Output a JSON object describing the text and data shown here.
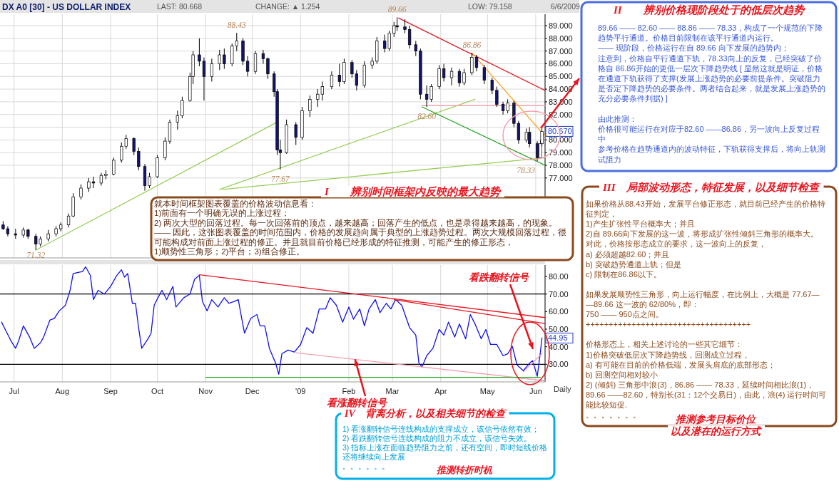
{
  "chart_data": [
    {
      "type": "candlestick",
      "title": "DX A0 [30] - US DOLLAR INDEX",
      "x": [
        "2008-06-24",
        "2008-06-27",
        "2008-07-02",
        "2008-07-07",
        "2008-07-10",
        "2008-07-15",
        "2008-07-18",
        "2008-07-23",
        "2008-07-28",
        "2008-07-31",
        "2008-08-05",
        "2008-08-08",
        "2008-08-13",
        "2008-08-18",
        "2008-08-21",
        "2008-08-26",
        "2008-08-29",
        "2008-09-03",
        "2008-09-08",
        "2008-09-11",
        "2008-09-16",
        "2008-09-19",
        "2008-09-23",
        "2008-09-26",
        "2008-10-01",
        "2008-10-06",
        "2008-10-09",
        "2008-10-14",
        "2008-10-17",
        "2008-10-22",
        "2008-10-24",
        "2008-10-28",
        "2008-10-31",
        "2008-11-05",
        "2008-11-10",
        "2008-11-13",
        "2008-11-18",
        "2008-11-21",
        "2008-11-25",
        "2008-11-28",
        "2008-12-03",
        "2008-12-08",
        "2008-12-11",
        "2008-12-15",
        "2008-12-17",
        "2008-12-19",
        "2008-12-23",
        "2008-12-29",
        "2009-01-02",
        "2009-01-07",
        "2009-01-12",
        "2009-01-15",
        "2009-01-21",
        "2009-01-26",
        "2009-01-29",
        "2009-02-03",
        "2009-02-06",
        "2009-02-11",
        "2009-02-16",
        "2009-02-19",
        "2009-02-24",
        "2009-02-27",
        "2009-03-02",
        "2009-03-04",
        "2009-03-09",
        "2009-03-12",
        "2009-03-16",
        "2009-03-19",
        "2009-03-23",
        "2009-03-26",
        "2009-03-31",
        "2009-04-03",
        "2009-04-08",
        "2009-04-13",
        "2009-04-16",
        "2009-04-21",
        "2009-04-24",
        "2009-04-29",
        "2009-05-04",
        "2009-05-07",
        "2009-05-11",
        "2009-05-14",
        "2009-05-18",
        "2009-05-21",
        "2009-05-26",
        "2009-05-28",
        "2009-06-02",
        "2009-06-04",
        "2009-06-05"
      ],
      "ohlc": [
        [
          73.3,
          73.6,
          72.9,
          73.0
        ],
        [
          73.0,
          73.2,
          72.4,
          72.6
        ],
        [
          72.6,
          73.0,
          72.2,
          72.5
        ],
        [
          72.5,
          73.1,
          72.3,
          72.9
        ],
        [
          72.9,
          73.0,
          72.2,
          72.4
        ],
        [
          72.4,
          72.6,
          71.32,
          71.8
        ],
        [
          71.8,
          72.4,
          71.6,
          72.2
        ],
        [
          72.2,
          72.9,
          72.0,
          72.6
        ],
        [
          72.6,
          73.2,
          72.4,
          73.0
        ],
        [
          73.0,
          73.5,
          72.8,
          73.3
        ],
        [
          73.3,
          74.2,
          73.1,
          74.0
        ],
        [
          74.0,
          75.8,
          73.9,
          75.5
        ],
        [
          75.5,
          76.5,
          75.3,
          76.2
        ],
        [
          76.2,
          77.0,
          75.9,
          76.7
        ],
        [
          76.7,
          77.1,
          76.2,
          76.6
        ],
        [
          76.6,
          77.4,
          76.4,
          77.2
        ],
        [
          77.2,
          77.6,
          76.9,
          77.3
        ],
        [
          77.3,
          78.6,
          77.2,
          78.4
        ],
        [
          78.4,
          79.8,
          78.2,
          79.5
        ],
        [
          79.5,
          80.4,
          79.3,
          80.1
        ],
        [
          80.1,
          80.2,
          78.8,
          79.1
        ],
        [
          79.1,
          79.4,
          77.6,
          77.9
        ],
        [
          77.9,
          78.1,
          76.0,
          76.4
        ],
        [
          76.4,
          77.4,
          76.2,
          77.1
        ],
        [
          77.1,
          78.8,
          77.0,
          78.6
        ],
        [
          78.6,
          80.2,
          78.4,
          79.9
        ],
        [
          79.9,
          81.6,
          79.7,
          81.4
        ],
        [
          81.4,
          82.3,
          80.8,
          81.9
        ],
        [
          81.9,
          83.4,
          81.7,
          83.1
        ],
        [
          83.1,
          85.3,
          83.0,
          85.0
        ],
        [
          85.0,
          87.0,
          84.4,
          86.7
        ],
        [
          86.7,
          88.0,
          85.8,
          86.2
        ],
        [
          86.2,
          86.5,
          83.1,
          85.0
        ],
        [
          85.0,
          86.4,
          84.6,
          86.0
        ],
        [
          86.0,
          87.1,
          85.5,
          86.7
        ],
        [
          86.7,
          87.2,
          85.6,
          86.0
        ],
        [
          86.0,
          87.6,
          85.8,
          87.4
        ],
        [
          87.4,
          88.43,
          87.0,
          87.8
        ],
        [
          87.8,
          88.0,
          85.9,
          86.2
        ],
        [
          86.2,
          86.6,
          85.0,
          85.4
        ],
        [
          85.4,
          87.0,
          85.2,
          86.8
        ],
        [
          86.8,
          87.1,
          86.0,
          86.4
        ],
        [
          86.4,
          86.5,
          84.8,
          85.2
        ],
        [
          85.2,
          85.4,
          83.4,
          83.8
        ],
        [
          83.8,
          84.0,
          78.8,
          79.2
        ],
        [
          79.2,
          80.0,
          77.67,
          79.0
        ],
        [
          79.0,
          81.6,
          78.9,
          81.2
        ],
        [
          81.2,
          81.4,
          79.6,
          80.2
        ],
        [
          80.2,
          82.6,
          80.0,
          82.3
        ],
        [
          82.3,
          83.5,
          81.8,
          83.2
        ],
        [
          83.2,
          84.0,
          82.6,
          83.6
        ],
        [
          83.6,
          84.6,
          83.1,
          84.2
        ],
        [
          84.2,
          85.4,
          84.0,
          85.1
        ],
        [
          85.1,
          86.0,
          84.2,
          84.6
        ],
        [
          84.6,
          86.4,
          84.4,
          86.1
        ],
        [
          86.1,
          86.3,
          84.9,
          85.2
        ],
        [
          85.2,
          85.5,
          83.9,
          84.3
        ],
        [
          84.3,
          86.2,
          84.1,
          85.9
        ],
        [
          85.9,
          86.5,
          85.6,
          86.2
        ],
        [
          86.2,
          88.1,
          86.0,
          87.8
        ],
        [
          87.8,
          88.3,
          86.9,
          87.2
        ],
        [
          87.2,
          88.6,
          87.0,
          88.4
        ],
        [
          88.4,
          89.3,
          88.1,
          89.0
        ],
        [
          89.0,
          89.66,
          88.6,
          88.9
        ],
        [
          88.9,
          89.5,
          88.4,
          88.7
        ],
        [
          88.7,
          89.0,
          87.2,
          87.5
        ],
        [
          87.5,
          87.8,
          86.6,
          87.0
        ],
        [
          87.0,
          87.2,
          83.2,
          83.6
        ],
        [
          83.6,
          84.3,
          82.6,
          83.2
        ],
        [
          83.2,
          84.4,
          83.0,
          84.2
        ],
        [
          84.2,
          85.9,
          84.0,
          85.6
        ],
        [
          85.6,
          86.0,
          84.6,
          84.9
        ],
        [
          84.9,
          85.7,
          84.3,
          85.4
        ],
        [
          85.4,
          85.6,
          84.2,
          84.5
        ],
        [
          84.5,
          85.6,
          84.3,
          85.3
        ],
        [
          85.3,
          86.86,
          85.1,
          86.5
        ],
        [
          86.5,
          86.7,
          85.4,
          85.7
        ],
        [
          85.7,
          85.9,
          84.4,
          84.7
        ],
        [
          84.7,
          84.9,
          83.6,
          83.9
        ],
        [
          83.9,
          84.2,
          82.6,
          82.8
        ],
        [
          82.8,
          83.0,
          82.0,
          82.3
        ],
        [
          82.3,
          83.2,
          82.1,
          82.9
        ],
        [
          82.9,
          83.1,
          81.0,
          81.3
        ],
        [
          81.3,
          81.5,
          79.7,
          80.0
        ],
        [
          80.0,
          80.9,
          79.8,
          80.6
        ],
        [
          80.6,
          81.0,
          79.4,
          79.7
        ],
        [
          79.7,
          79.9,
          78.33,
          78.6
        ],
        [
          78.6,
          80.0,
          78.5,
          79.7
        ],
        [
          79.7,
          80.9,
          79.5,
          80.67
        ]
      ],
      "series": [
        {
          "type": "line",
          "color": "#9acd5a",
          "x": [
            "2008-07-15",
            "2008-12-17"
          ],
          "values": [
            71.32,
            81.4
          ]
        },
        {
          "type": "line",
          "color": "#9acd5a",
          "x": [
            "2008-11-12",
            "2009-06-07"
          ],
          "values": [
            76.1,
            78.6
          ]
        },
        {
          "type": "line",
          "color": "#9acd5a",
          "x": [
            "2008-11-10",
            "2009-04-23"
          ],
          "values": [
            76.1,
            83.2
          ]
        },
        {
          "type": "line",
          "color": "#f4a0b0",
          "x": [
            "2009-03-20",
            "2009-06-07"
          ],
          "values": [
            82.7,
            82.7
          ]
        },
        {
          "type": "line",
          "color": "#e8141e",
          "x": [
            "2009-03-05",
            "2009-06-07"
          ],
          "values": [
            89.6,
            83.9
          ]
        },
        {
          "type": "line",
          "color": "#1ea01e",
          "x": [
            "2009-03-20",
            "2009-06-07"
          ],
          "values": [
            82.6,
            78.0
          ]
        },
        {
          "type": "line",
          "color": "#ffa020",
          "x": [
            "2009-04-21",
            "2009-06-07"
          ],
          "values": [
            86.86,
            80.3
          ]
        }
      ],
      "xlim": [
        "2008-06-22",
        "2009-06-07"
      ],
      "xticks": [
        {
          "value": "2008-07-01",
          "label": null
        },
        {
          "value": "2008-08-01",
          "label": null
        },
        {
          "value": "2008-09-01",
          "label": null
        },
        {
          "value": "2008-10-01",
          "label": null
        },
        {
          "value": "2008-11-01",
          "label": null
        },
        {
          "value": "2008-12-01",
          "label": null
        },
        {
          "value": "2009-01-01",
          "label": null
        },
        {
          "value": "2009-02-01",
          "label": null
        },
        {
          "value": "2009-03-01",
          "label": null
        },
        {
          "value": "2009-04-01",
          "label": null
        },
        {
          "value": "2009-05-01",
          "label": null
        },
        {
          "value": "2009-06-01",
          "label": null
        }
      ],
      "ylim": [
        70.7,
        89.9
      ],
      "yticks": [
        {
          "value": 77,
          "label": "77.000"
        },
        {
          "value": 78,
          "label": "78.000"
        },
        {
          "value": 79,
          "label": "79.000"
        },
        {
          "value": 80,
          "label": "80.000"
        },
        {
          "value": 81,
          "label": null
        },
        {
          "value": 82,
          "label": "82.000"
        },
        {
          "value": 83,
          "label": "83.000"
        },
        {
          "value": 84,
          "label": "84.000"
        },
        {
          "value": 85,
          "label": "85.000"
        },
        {
          "value": 86,
          "label": "86.000"
        },
        {
          "value": 87,
          "label": "87.000"
        },
        {
          "value": 88,
          "label": "88.000"
        },
        {
          "value": 89,
          "label": "89.000"
        }
      ],
      "tick_labels": "y",
      "grid": true,
      "annotations": [
        "LAST: 80.668",
        "CHANGE: ▲ 1.254",
        "LOW: 79.158",
        "6/6/2009",
        {
          "text": "88.43",
          "x": "2008-11-21",
          "y": 88.43
        },
        {
          "text": "89.66",
          "x": "2009-03-04",
          "y": 89.66
        },
        {
          "text": "86.86",
          "x": "2009-04-21",
          "y": 86.86
        },
        {
          "text": "82.60",
          "x": "2009-03-23",
          "y": 82.6
        },
        {
          "text": "77.67",
          "x": "2008-12-19",
          "y": 77.67
        },
        {
          "text": "78.33",
          "x": "2009-06-02",
          "y": 78.33
        },
        {
          "text": "71.32",
          "x": "2008-07-15",
          "y": 71.32
        },
        {
          "text": "80.670",
          "x": "2009-06-05",
          "y": 80.67
        }
      ]
    },
    {
      "type": "line",
      "series": [
        {
          "color": "#1010ee",
          "x": [
            "2008-06-23",
            "2008-06-26",
            "2008-06-29",
            "2008-07-02",
            "2008-07-04",
            "2008-07-07",
            "2008-07-11",
            "2008-07-14",
            "2008-07-18",
            "2008-07-20",
            "2008-07-24",
            "2008-07-27",
            "2008-07-30",
            "2008-08-03",
            "2008-08-06",
            "2008-08-08",
            "2008-08-14",
            "2008-08-16",
            "2008-08-19",
            "2008-08-21",
            "2008-08-24",
            "2008-08-28",
            "2008-09-01",
            "2008-09-05",
            "2008-09-08",
            "2008-09-10",
            "2008-09-12",
            "2008-09-15",
            "2008-09-17",
            "2008-09-19",
            "2008-09-21",
            "2008-09-25",
            "2008-09-27",
            "2008-09-29",
            "2008-10-02",
            "2008-10-04",
            "2008-10-07",
            "2008-10-11",
            "2008-10-13",
            "2008-10-18",
            "2008-10-22",
            "2008-10-25",
            "2008-10-28",
            "2008-10-30",
            "2008-11-02",
            "2008-11-05",
            "2008-11-09",
            "2008-11-13",
            "2008-11-16",
            "2008-11-19",
            "2008-11-22",
            "2008-11-24",
            "2008-11-26",
            "2008-11-30",
            "2008-12-04",
            "2008-12-06",
            "2008-12-09",
            "2008-12-12",
            "2008-12-16",
            "2008-12-18",
            "2008-12-20",
            "2008-12-24",
            "2008-12-28",
            "2009-01-01",
            "2009-01-05",
            "2009-01-09",
            "2009-01-13",
            "2009-01-17",
            "2009-01-20",
            "2009-01-24",
            "2009-01-28",
            "2009-02-01",
            "2009-02-04",
            "2009-02-08",
            "2009-02-11",
            "2009-02-14",
            "2009-02-18",
            "2009-02-21",
            "2009-02-25",
            "2009-02-28",
            "2009-03-03",
            "2009-03-07",
            "2009-03-12",
            "2009-03-16",
            "2009-03-18",
            "2009-03-20",
            "2009-03-23",
            "2009-03-27",
            "2009-03-31",
            "2009-04-03",
            "2009-04-06",
            "2009-04-10",
            "2009-04-13",
            "2009-04-17",
            "2009-04-20",
            "2009-04-23",
            "2009-04-27",
            "2009-04-30",
            "2009-05-03",
            "2009-05-07",
            "2009-05-11",
            "2009-05-14",
            "2009-05-17",
            "2009-05-20",
            "2009-05-24",
            "2009-05-28",
            "2009-05-30",
            "2009-06-02",
            "2009-06-04",
            "2009-06-05"
          ],
          "values": [
            54.0,
            48.7,
            43.4,
            39.1,
            43.4,
            51.9,
            45.5,
            39.1,
            42.3,
            45.5,
            55.1,
            56.2,
            60.4,
            63.6,
            72.1,
            81.7,
            82.8,
            85.5,
            80.6,
            66.8,
            72.1,
            70.0,
            74.3,
            80.6,
            83.8,
            79.6,
            81.7,
            64.7,
            64.7,
            50.9,
            39.1,
            44.5,
            47.7,
            63.6,
            68.9,
            72.1,
            66.8,
            74.3,
            62.6,
            67.9,
            70.0,
            78.5,
            80.6,
            65.7,
            60.4,
            66.8,
            62.6,
            67.9,
            64.7,
            65.7,
            66.8,
            57.2,
            47.7,
            56.2,
            58.3,
            51.9,
            51.9,
            39.1,
            30.6,
            24.3,
            36.0,
            38.1,
            37.0,
            41.3,
            50.9,
            47.7,
            61.5,
            61.5,
            67.9,
            63.6,
            54.0,
            62.6,
            55.7,
            61.5,
            51.9,
            61.5,
            66.8,
            59.4,
            64.7,
            61.5,
            66.8,
            63.6,
            50.9,
            46.6,
            30.6,
            28.5,
            34.9,
            39.1,
            49.8,
            46.6,
            54.0,
            45.5,
            53.0,
            44.5,
            58.3,
            53.0,
            44.5,
            49.8,
            41.3,
            41.3,
            34.9,
            36.0,
            40.2,
            29.6,
            26.4,
            30.6,
            32.1,
            23.2,
            37.0,
            45.0
          ]
        },
        {
          "type": "line",
          "color": "#e8141e",
          "x": [
            "2008-10-28",
            "2009-06-07"
          ],
          "values": [
            81.0,
            56.6
          ]
        },
        {
          "type": "line",
          "color": "#e8141e",
          "x": [
            "2009-03-02",
            "2009-06-07"
          ],
          "values": [
            66.8,
            53.2
          ]
        },
        {
          "type": "line",
          "color": "#f4a0b0",
          "x": [
            "2008-12-29",
            "2009-06-07"
          ],
          "values": [
            36.6,
            20.6
          ]
        },
        {
          "type": "line",
          "color": "#f4a0b0",
          "x": [
            "2009-05-24",
            "2009-06-05"
          ],
          "values": [
            25.7,
            36.0
          ]
        },
        {
          "type": "line",
          "color": "#22aa22",
          "x": [
            "2008-11-01",
            "2009-06-04"
          ],
          "values": [
            22.6,
            22.6
          ]
        }
      ],
      "ref_lines": [
        {
          "axis": "y",
          "value": 70,
          "color": "#000000"
        },
        {
          "axis": "y",
          "value": 30,
          "color": "#000000"
        }
      ],
      "xlim": [
        "2008-06-22",
        "2009-06-07"
      ],
      "xticks": [
        {
          "value": "2008-07-01",
          "label": "Jul"
        },
        {
          "value": "2008-08-01",
          "label": "Aug"
        },
        {
          "value": "2008-09-01",
          "label": "Sep"
        },
        {
          "value": "2008-10-01",
          "label": "Oct"
        },
        {
          "value": "2008-11-01",
          "label": "Nov"
        },
        {
          "value": "2008-12-01",
          "label": "Dec"
        },
        {
          "value": "2009-01-01",
          "label": "'09"
        },
        {
          "value": "2009-02-01",
          "label": "Feb"
        },
        {
          "value": "2009-03-01",
          "label": "Mar"
        },
        {
          "value": "2009-04-01",
          "label": "Apr"
        },
        {
          "value": "2009-05-01",
          "label": "May"
        },
        {
          "value": "2009-06-01",
          "label": "Jun"
        }
      ],
      "ylim": [
        20,
        86.5
      ],
      "yticks": [
        {
          "value": 30,
          "label": "30.00"
        },
        {
          "value": 40,
          "label": "40.00"
        },
        {
          "value": 50,
          "label": "50.00"
        },
        {
          "value": 60,
          "label": "60.00"
        },
        {
          "value": 70,
          "label": "70.00"
        },
        {
          "value": 80,
          "label": "80.00"
        }
      ],
      "grid": "x",
      "annotations": [
        {
          "text": "44.95",
          "x": "2009-06-05",
          "y": 44.95
        },
        "看跌翻转信号",
        {
          "text": "看涨翻转信号",
          "x": "2009-02-05",
          "y": 32.8
        },
        "Daily"
      ]
    },
    {
      "type": "other",
      "annotations": [
        "I　　辨别时间框架内反映的最大趋势",
        "就本时间框架图表覆盖的价格波动信息看：",
        "1)前面有一个明确无误的上涨过程；",
        "2) 两次大型的回落过程。每一次回落前的顶点，越来越高；回落产生的低点，也是录得越来越高，的现象。",
        "—— 因此，这张图表覆盖的时间范围内，价格的发展趋向属于典型的上涨趋势过程。两次大规模回落过程，很可能构成对前面上涨过程的修正。并且就目前价格已经形成的特征推测，可能产生的修正形态，",
        "1)顺势性三角形；2)平台；3)组合修正。",
        "II　　辨别价格现阶段处于的低层次趋势",
        "89.66 —— 82.60 —— 88.86 —— 78.33，构成了一个规范的下降趋势平行通道。价格目前限制在该平行通道内运行。",
        "—— 现阶段，价格运行在自 89.66 向下发展的趋势内；",
        "注意到，价格自平行通道下轨，78.33向上的反复，已经突破了价格自 86.86开始的更低一层次下降趋势线 [ 显然这就是明证，价格在通道下轨获得了支撑(发展上涨趋势的必要前提条件。突破阻力是否定下降趋势的必要条件。两者结合起来，就是发展上涨趋势的充分必要条件判据) ]",
        "由此推测：",
        "价格很可能运行在对应于82.60 ——86.86，另一波向上反复过程中",
        "参考价格在趋势通道内的波动特征，下轨获得支撑后，将向上轨测试阻力",
        "III　局部波动形态，特征发展，以及细节检查",
        "如果价格从88.43开始，发展平台修正形态，就目前已经产生的价格特征判定，",
        "1)产生扩张性平台概率大；并且",
        "2)自 89.66向下发展的这一波，将形成扩张性倾斜三角形的概率大。",
        "对此，价格按形态成立的要求，这一波向上的反复，",
        "a) 必须超越82.60；并且",
        "b) 突破趋势通道上轨；但是",
        "c) 限制在86.86以下。",
        "如果发展顺势性三角形，向上运行幅度，在比例上，大概是 77.67——89.66 这一波的 62/80%，即：",
        "750 —— 950点之间。",
        "++++++++++++++++++++++++++++++++++++",
        "价格形态上，相关上述讨论的一些其它细节：",
        "1)价格突破低层次下降趋势线，回测成立过程，",
        "a) 有可能在目前的价格低端，发展头肩底的底部形态；",
        "b) 回测空间相对较小",
        "2) (倾斜) 三角形中浪(3)，86.86 —— 78.33，延续时间相比浪(1)，89.66 ——82.60，特别长(31：12个交易日)，由此，浪(4) 运行时间可能比较短促.",
        "。。。。。。。",
        "推测参考目标价位",
        "以及潜在的运行方式",
        "IV　背离分析，以及相关细节的检查",
        "1) 看涨翻转信号连线构成的支撑成立，该信号依然有效；",
        "2) 看跌翻转信号连线构成的阻力不成立，该信号失效。",
        "3) 指标上涨在面临趋势阻力之前，还有空间，即时短线价格还将继续向上发展",
        "。。。。。。",
        "推测转折时机"
      ]
    }
  ]
}
